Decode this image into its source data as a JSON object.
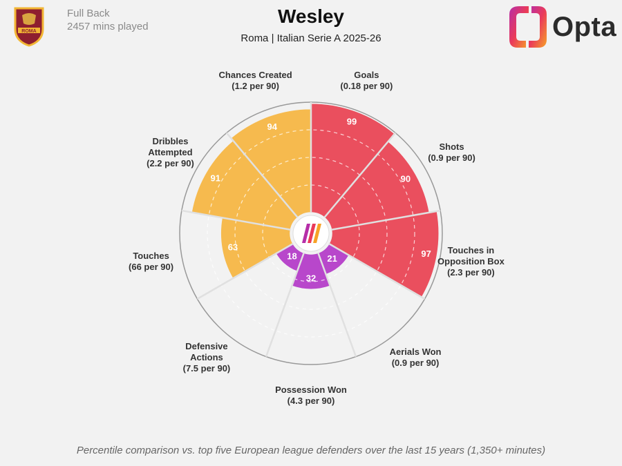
{
  "header": {
    "position": "Full Back",
    "minutes": "2457 mins played",
    "title": "Wesley",
    "subtitle": "Roma | Italian Serie A 2025-26",
    "club_crest_text": "ROMA",
    "brand": "Opta"
  },
  "footnote": "Percentile comparison vs. top five European league defenders over the last 15 years (1,350+ minutes)",
  "colors": {
    "attacking": "#ea4f5e",
    "possession": "#f6ba4e",
    "defending": "#b847cb",
    "background": "#f2f2f2"
  },
  "chart_data": {
    "type": "radar",
    "rlim": [
      0,
      100
    ],
    "metrics": [
      {
        "name": "Goals",
        "value": "(0.18 per 90)",
        "percentile": 99,
        "group": "attacking"
      },
      {
        "name": "Shots",
        "value": "(0.9 per 90)",
        "percentile": 90,
        "group": "attacking"
      },
      {
        "name": "Touches in\nOpposition Box",
        "value": "(2.3 per 90)",
        "percentile": 97,
        "group": "attacking"
      },
      {
        "name": "Aerials Won",
        "value": "(0.9 per 90)",
        "percentile": 21,
        "group": "defending"
      },
      {
        "name": "Possession Won",
        "value": "(4.3 per 90)",
        "percentile": 32,
        "group": "defending"
      },
      {
        "name": "Defensive\nActions",
        "value": "(7.5 per 90)",
        "percentile": 18,
        "group": "defending"
      },
      {
        "name": "Touches",
        "value": "(66 per 90)",
        "percentile": 63,
        "group": "possession"
      },
      {
        "name": "Dribbles\nAttempted",
        "value": "(2.2 per 90)",
        "percentile": 91,
        "group": "possession"
      },
      {
        "name": "Chances Created",
        "value": "(1.2 per 90)",
        "percentile": 94,
        "group": "possession"
      }
    ]
  }
}
